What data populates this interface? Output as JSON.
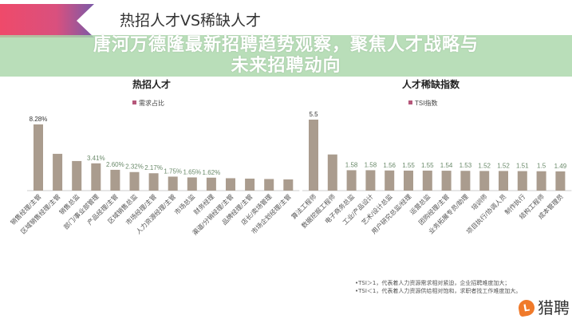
{
  "header": {
    "title": "热招人才VS稀缺人才"
  },
  "banner": {
    "line1": "唐河万德隆最新招聘趋势观察，聚焦人才战略与",
    "line2": "未来招聘动向"
  },
  "notes": [
    "•TSI＞1，代表着人力资源需求相对紧迫，企业招聘难度加大；",
    "•TSI＜1，代表着人力资源供给相对饱和，求职者找工作难度加大。"
  ],
  "logo": {
    "text": "猎聘",
    "icon": "liepin-logo-icon"
  },
  "colors": {
    "bar": "#aa9c8e",
    "legend": "#b5577a",
    "banner": "#aad7aa",
    "logo": "#f07a2a"
  },
  "chart_data": [
    {
      "type": "bar",
      "title": "热招人才",
      "legend": "需求占比",
      "legend_position": "top",
      "categories": [
        "销售经理/主管",
        "区域销售经理/主管",
        "销售总监",
        "部门/事业部管理",
        "产品经理/主管",
        "区域销售总监",
        "市场经理/主管",
        "人力资源经理/主管",
        "市场总监",
        "财务经理",
        "渠道/分销经理/主管",
        "品牌经理/主管",
        "店长/卖场管理",
        "市场企划经理/主管"
      ],
      "values": [
        8.28,
        4.6,
        3.7,
        3.41,
        2.6,
        2.32,
        2.17,
        1.75,
        1.65,
        1.62,
        1.55,
        1.5,
        1.45,
        1.4
      ],
      "data_labels": [
        "8.28%",
        "",
        "",
        "3.41%",
        "2.60%",
        "2.32%",
        "2.17%",
        "1.75%",
        "1.65%",
        "1.62%",
        "",
        "",
        "",
        ""
      ],
      "grid": false
    },
    {
      "type": "bar",
      "title": "人才稀缺指数",
      "legend": "TSI指数",
      "legend_position": "top",
      "categories": [
        "算法工程师",
        "数据挖掘工程师",
        "电子商务总监",
        "工业/产品设计",
        "艺术/设计总监",
        "用户研究总监/经理",
        "运营总监",
        "团购经理/主管",
        "业务拓展专员/助理",
        "培训师",
        "项目执行/协调人员",
        "制作执行",
        "结构工程师",
        "成本管理员"
      ],
      "values": [
        5.5,
        2.8,
        1.58,
        1.58,
        1.56,
        1.55,
        1.55,
        1.54,
        1.53,
        1.52,
        1.52,
        1.51,
        1.5,
        1.49
      ],
      "data_labels": [
        "5.5",
        "",
        "1.58",
        "1.58",
        "1.56",
        "1.55",
        "1.55",
        "1.54",
        "1.53",
        "1.52",
        "1.52",
        "1.51",
        "1.5",
        "1.49"
      ],
      "grid": false
    }
  ]
}
